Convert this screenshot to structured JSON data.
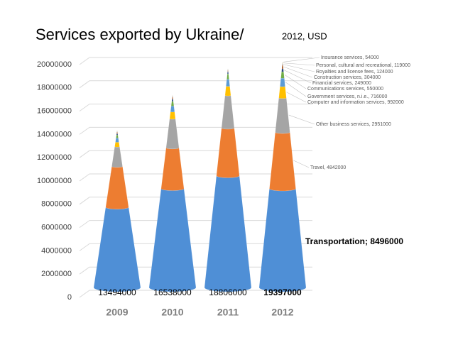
{
  "chart_data": {
    "type": "cone_stacked",
    "title": "Services exported by Ukraine/",
    "subtitle": "2012, USD",
    "categories": [
      "2009",
      "2010",
      "2011",
      "2012"
    ],
    "totals": [
      13494000,
      16538000,
      18806000,
      19397000
    ],
    "series": [
      {
        "name": "Transportation",
        "color": "#4f8fd6",
        "values": [
          6900000,
          8500000,
          9600000,
          8496000
        ],
        "value_labels": [
          null,
          null,
          null,
          "Transportation; 8496000"
        ]
      },
      {
        "name": "Travel",
        "color": "#ed7d31",
        "values": [
          3500000,
          3500000,
          4100000,
          4842000
        ],
        "value_labels": [
          null,
          null,
          null,
          "Travel, 4842000"
        ]
      },
      {
        "name": "Other business services",
        "color": "#a5a5a5",
        "values": [
          1700000,
          2500000,
          2800000,
          2951000
        ],
        "value_labels": [
          null,
          null,
          null,
          "Other business services, 2951000"
        ]
      },
      {
        "name": "Computer and information services",
        "color": "#ffc000",
        "values": [
          400000,
          600000,
          800000,
          992000
        ],
        "value_labels": [
          null,
          null,
          null,
          "Computer and information services, 992000"
        ]
      },
      {
        "name": "Government services, n.i.e.",
        "color": "#5b9bd5",
        "values": [
          350000,
          500000,
          600000,
          716000
        ],
        "value_labels": [
          null,
          null,
          null,
          "Government services, n.i.e., 716000"
        ]
      },
      {
        "name": "Communications services",
        "color": "#70ad47",
        "values": [
          250000,
          400000,
          450000,
          550000
        ],
        "value_labels": [
          null,
          null,
          null,
          "Communications services, 550000"
        ]
      },
      {
        "name": "Financial services",
        "color": "#264478",
        "values": [
          120000,
          180000,
          200000,
          249000
        ],
        "value_labels": [
          null,
          null,
          null,
          "Financial services, 249000"
        ]
      },
      {
        "name": "Construction services",
        "color": "#9e480e",
        "values": [
          150000,
          200000,
          120000,
          304000
        ],
        "value_labels": [
          null,
          null,
          null,
          "Construction services, 304000"
        ]
      },
      {
        "name": "Royalties and license fees",
        "color": "#636363",
        "values": [
          60000,
          80000,
          70000,
          124000
        ],
        "value_labels": [
          null,
          null,
          null,
          "Royalties and license fees, 124000"
        ]
      },
      {
        "name": "Personal, cultural and recreational",
        "color": "#997300",
        "values": [
          40000,
          50000,
          40000,
          119000
        ],
        "value_labels": [
          null,
          null,
          null,
          "Personal, cultural and recreational, 119000"
        ]
      },
      {
        "name": "Insurance services",
        "color": "#255e91",
        "values": [
          24000,
          28000,
          26000,
          54000
        ],
        "value_labels": [
          null,
          null,
          null,
          "Insurance services, 54000"
        ]
      }
    ],
    "ylim": [
      0,
      20000000
    ],
    "yticks": [
      0,
      2000000,
      4000000,
      6000000,
      8000000,
      10000000,
      12000000,
      14000000,
      16000000,
      18000000,
      20000000
    ],
    "grid": true
  }
}
